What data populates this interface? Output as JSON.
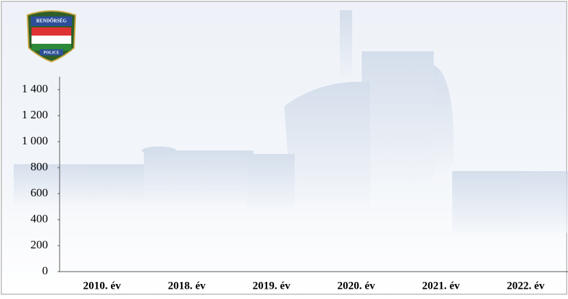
{
  "logo": {
    "top": "RENDŐRSÉG",
    "bottom": "POLICE"
  },
  "chart_data": {
    "type": "bar",
    "categories": [
      "2010. év",
      "2018. év",
      "2019. év",
      "2020. év",
      "2021. év",
      "2022. év"
    ],
    "ylim": [
      0,
      1500
    ],
    "yticks": [
      0,
      200,
      400,
      600,
      800,
      {
        "value": 1000,
        "label": "1 000"
      },
      {
        "value": 1200,
        "label": "1 200"
      },
      {
        "value": 1400,
        "label": "1 400"
      }
    ]
  }
}
